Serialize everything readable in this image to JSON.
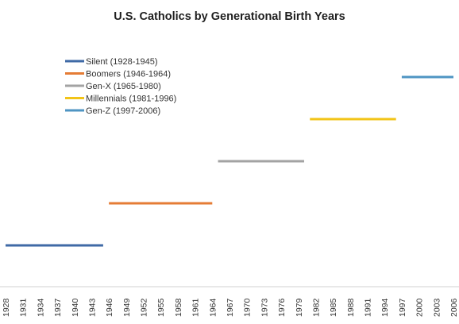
{
  "chart_data": {
    "type": "line",
    "title": "U.S. Catholics by Generational Birth Years",
    "xlabel": "",
    "ylabel": "",
    "x_ticks": [
      "1928",
      "1931",
      "1934",
      "1937",
      "1940",
      "1943",
      "1946",
      "1949",
      "1952",
      "1955",
      "1958",
      "1961",
      "1964",
      "1967",
      "1970",
      "1973",
      "1976",
      "1979",
      "1982",
      "1985",
      "1988",
      "1991",
      "1994",
      "1997",
      "2000",
      "2003",
      "2006"
    ],
    "xlim": [
      1928,
      2006
    ],
    "grid": false,
    "y_axis_visible": false,
    "legend_position": "top-left",
    "series": [
      {
        "name": "Silent (1928-1945)",
        "color": "#3f6aa6",
        "x": [
          1928,
          1945
        ],
        "y": [
          1,
          1
        ]
      },
      {
        "name": "Boomers (1946-1964)",
        "color": "#e57c35",
        "x": [
          1946,
          1964
        ],
        "y": [
          2,
          2
        ]
      },
      {
        "name": "Gen-X (1965-1980)",
        "color": "#a3a3a3",
        "x": [
          1965,
          1980
        ],
        "y": [
          3,
          3
        ]
      },
      {
        "name": "Millennials (1981-1996)",
        "color": "#f2c418",
        "x": [
          1981,
          1996
        ],
        "y": [
          4,
          4
        ]
      },
      {
        "name": "Gen-Z (1997-2006)",
        "color": "#4f95c3",
        "x": [
          1997,
          2006
        ],
        "y": [
          5,
          5
        ]
      }
    ]
  }
}
